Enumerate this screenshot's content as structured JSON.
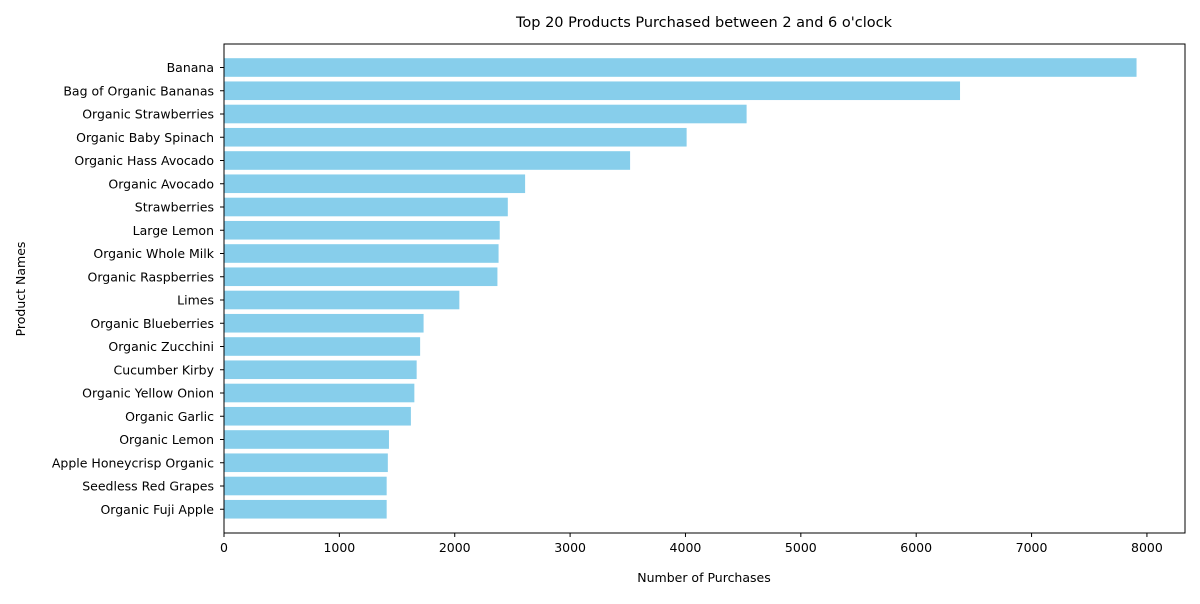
{
  "chart_data": {
    "type": "bar",
    "orientation": "horizontal",
    "title": "Top 20 Products Purchased between 2 and 6 o'clock",
    "xlabel": "Number of Purchases",
    "ylabel": "Product Names",
    "xlim": [
      0,
      8330
    ],
    "xticks": [
      0,
      1000,
      2000,
      3000,
      4000,
      5000,
      6000,
      7000,
      8000
    ],
    "grid": false,
    "legend": "none",
    "bar_color": "#87ceeb",
    "categories": [
      "Banana",
      "Bag of Organic Bananas",
      "Organic Strawberries",
      "Organic Baby Spinach",
      "Organic Hass Avocado",
      "Organic Avocado",
      "Strawberries",
      "Large Lemon",
      "Organic Whole Milk",
      "Organic Raspberries",
      "Limes",
      "Organic Blueberries",
      "Organic Zucchini",
      "Cucumber Kirby",
      "Organic Yellow Onion",
      "Organic Garlic",
      "Organic Lemon",
      "Apple Honeycrisp Organic",
      "Seedless Red Grapes",
      "Organic Fuji Apple"
    ],
    "values": [
      7910,
      6380,
      4530,
      4010,
      3520,
      2610,
      2460,
      2390,
      2380,
      2370,
      2040,
      1730,
      1700,
      1670,
      1650,
      1620,
      1430,
      1420,
      1410,
      1410
    ]
  }
}
